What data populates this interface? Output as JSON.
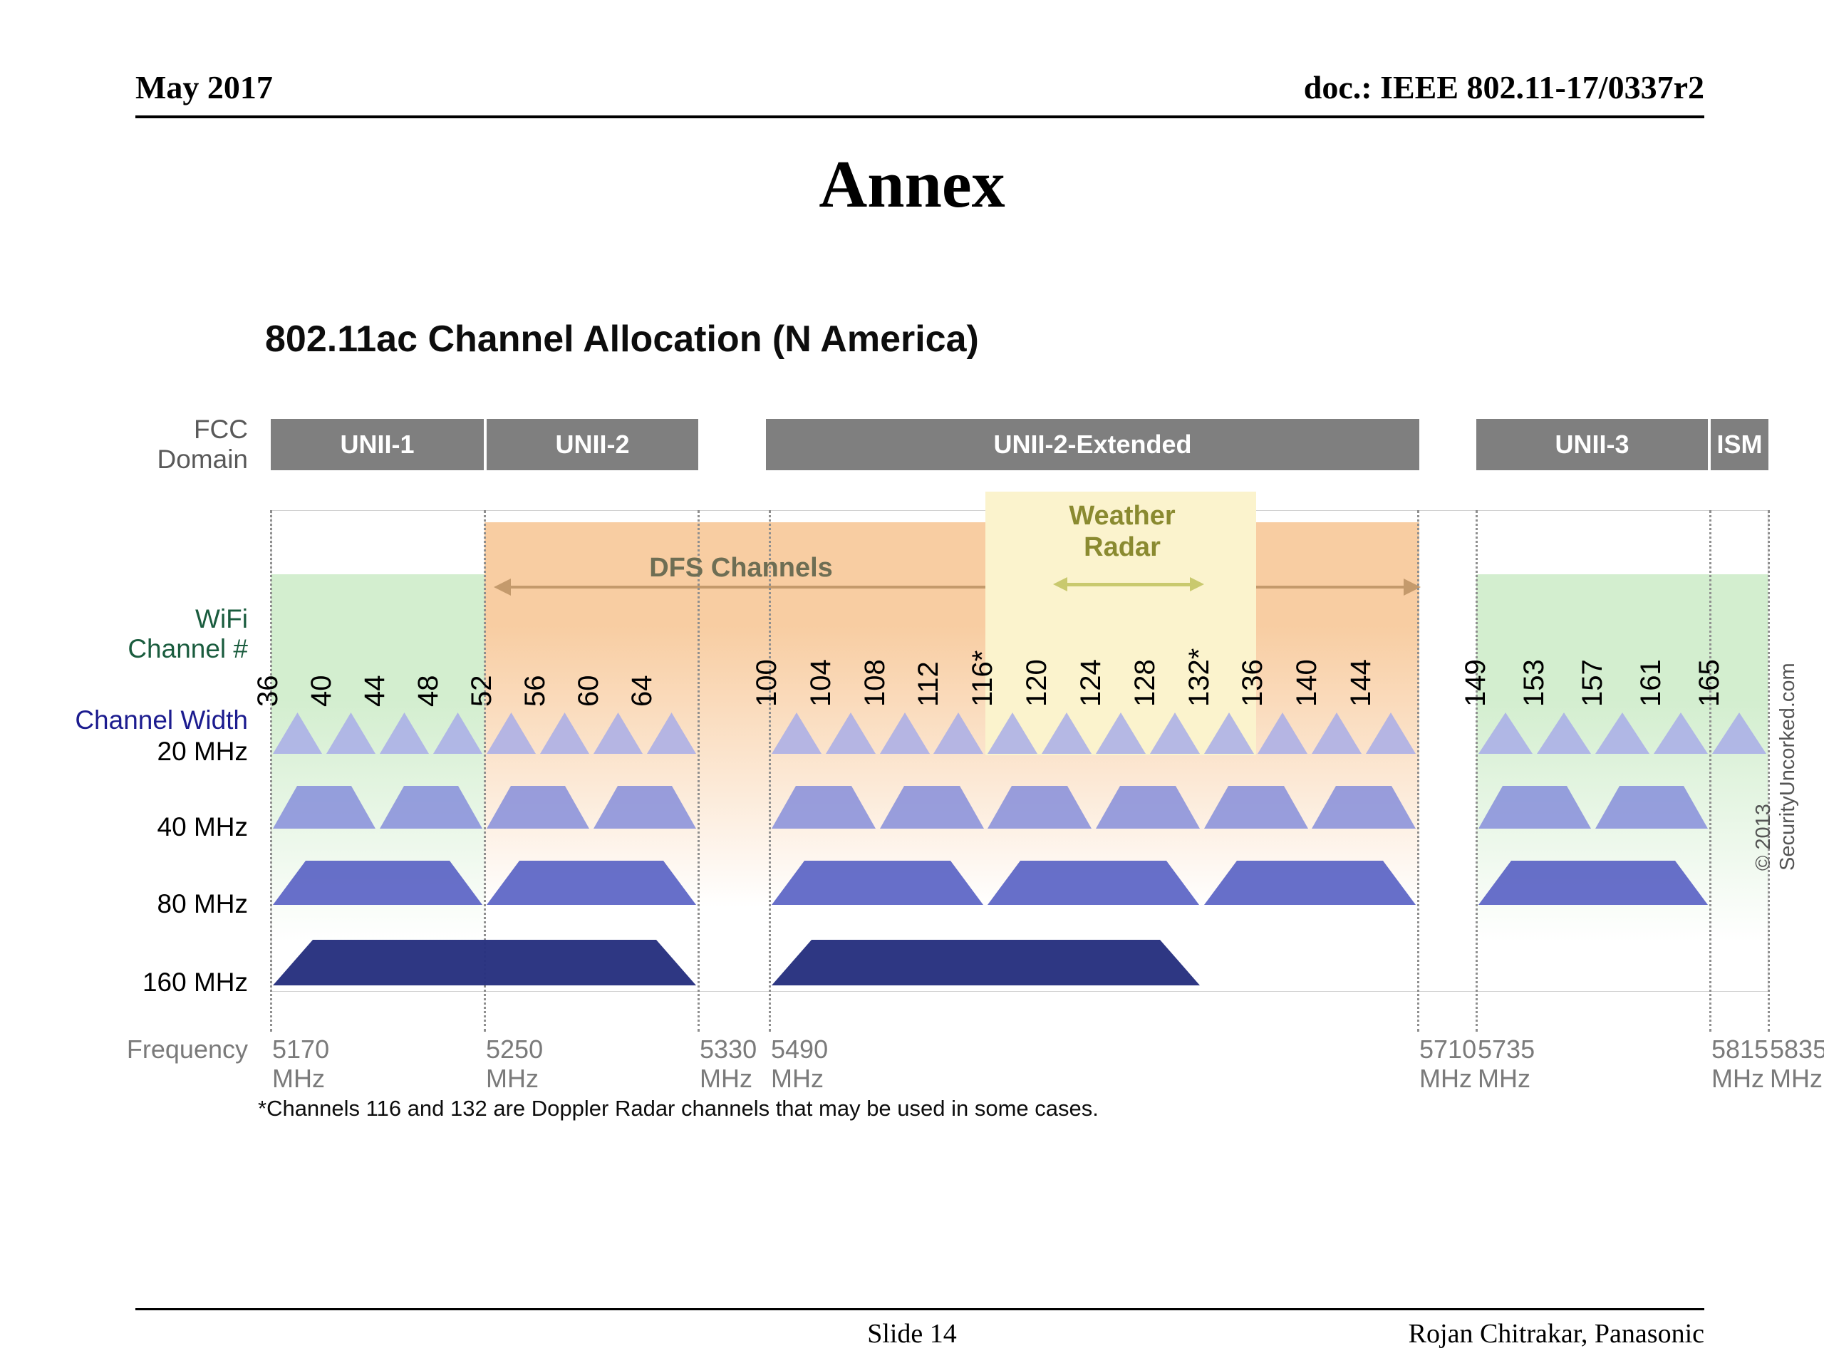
{
  "header": {
    "left": "May 2017",
    "right": "doc.: IEEE 802.11-17/0337r2"
  },
  "title": "Annex",
  "subtitle": "802.11ac Channel Allocation (N America)",
  "diagram": {
    "row_labels": {
      "fcc_line1": "FCC",
      "fcc_line2": "Domain",
      "wifi_line1": "WiFi",
      "wifi_line2": "Channel #",
      "width_label": "Channel Width",
      "frequency": "Frequency"
    },
    "domains": [
      "UNII-1",
      "UNII-2",
      "UNII-2-Extended",
      "UNII-3",
      "ISM"
    ],
    "dfs_label": "DFS Channels",
    "weather_line1": "Weather",
    "weather_line2": "Radar",
    "channels": [
      "36",
      "40",
      "44",
      "48",
      "52",
      "56",
      "60",
      "64",
      "100",
      "104",
      "108",
      "112",
      "116*",
      "120",
      "124",
      "128",
      "132*",
      "136",
      "140",
      "144",
      "149",
      "153",
      "157",
      "161",
      "165"
    ],
    "width_rows": [
      "20 MHz",
      "40 MHz",
      "80 MHz",
      "160 MHz"
    ],
    "groups_40": [
      [
        0,
        1
      ],
      [
        2,
        3
      ],
      [
        4,
        5
      ],
      [
        6,
        7
      ],
      [
        8,
        9
      ],
      [
        10,
        11
      ],
      [
        12,
        13
      ],
      [
        14,
        15
      ],
      [
        16,
        17
      ],
      [
        18,
        19
      ],
      [
        20,
        21
      ],
      [
        22,
        23
      ]
    ],
    "groups_80": [
      [
        0,
        3
      ],
      [
        4,
        7
      ],
      [
        8,
        11
      ],
      [
        12,
        15
      ],
      [
        16,
        19
      ],
      [
        20,
        23
      ]
    ],
    "groups_160": [
      [
        0,
        7
      ],
      [
        8,
        15
      ]
    ],
    "frequencies": [
      "5170",
      "5250",
      "5330",
      "5490",
      "5710",
      "5735",
      "5815",
      "5835"
    ],
    "freq_unit": "MHz",
    "footnote": "*Channels 116 and 132 are Doppler Radar channels that may be used in some cases.",
    "copyright": "© 2013 SecurityUncorked.com",
    "colors": {
      "mhz20": "#a8ade8",
      "mhz40": "#868edb",
      "mhz80": "#5a63c4",
      "mhz160": "#27317f",
      "unii_band": "#d3eecf",
      "dfs_band": "#f8cda2",
      "weather_band": "#fbf3cd",
      "domain_bar": "#7f7f7f",
      "dfs_arrow": "#c49a6c",
      "dfs_text": "#6e6e54",
      "weather_arrow": "#c9c96e",
      "weather_text": "#8a8a30"
    }
  },
  "footer": {
    "slide": "Slide 14",
    "author": "Rojan Chitrakar, Panasonic"
  }
}
